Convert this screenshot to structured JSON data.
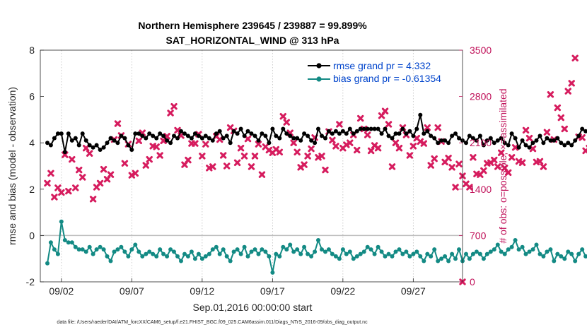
{
  "chart_data": {
    "type": "line",
    "title": "Northern Hemisphere 239645 / 239887 = 99.899%",
    "subtitle": "SAT_HORIZONTAL_WIND @ 313 hPa",
    "xlabel": "Sep.01,2016 00:00:00 start",
    "ylabel": "rmse and bias (model - observation)",
    "ylabel_right": "# of obs: o=possible; ×=assimilated",
    "footnote": "data file: /Users/raeder/DAI/ATM_forcXX/CAM6_setup/f.e21.FHIST_BGC.f09_025.CAM6assim.011/Diags_NTrS_2016-09/obs_diag_output.nc",
    "ylim": [
      -2,
      8
    ],
    "ylim_right": [
      0,
      3500
    ],
    "xlim": [
      0.5,
      30.5
    ],
    "x_ticks": [
      2,
      7,
      12,
      17,
      22,
      27
    ],
    "x_tick_labels": [
      "09/02",
      "09/07",
      "09/12",
      "09/17",
      "09/22",
      "09/27"
    ],
    "y_ticks": [
      -2,
      0,
      2,
      4,
      6,
      8
    ],
    "y_tick_labels": [
      "-2",
      "0",
      "2",
      "4",
      "6",
      "8"
    ],
    "y_ticks_right": [
      0,
      700,
      1400,
      2100,
      2800,
      3500
    ],
    "y_tick_labels_right": [
      "0",
      "700",
      "1400",
      "2100",
      "2800",
      "3500"
    ],
    "grid": "vertical",
    "legend_position": "top-right",
    "colors": {
      "rmse": "#000000",
      "bias": "#138a84",
      "obs": "#d61c5e",
      "zero_line": "#bdbdbd",
      "right_axis": "#c0125a"
    },
    "series": [
      {
        "name": "rmse grand pr = 4.332",
        "color": "#000000",
        "t0": 1.0,
        "dt": 0.25,
        "values": [
          4.0,
          3.9,
          4.2,
          4.4,
          4.4,
          3.6,
          4.4,
          4.1,
          4.2,
          3.9,
          4.4,
          4.1,
          3.9,
          3.8,
          3.9,
          3.7,
          3.8,
          4.0,
          4.2,
          4.1,
          4.0,
          4.3,
          4.2,
          3.9,
          3.7,
          4.4,
          4.4,
          4.3,
          4.2,
          4.4,
          4.3,
          4.2,
          4.4,
          4.3,
          4.1,
          4.0,
          4.3,
          4.2,
          4.5,
          4.4,
          4.3,
          4.2,
          4.4,
          4.3,
          4.2,
          4.3,
          4.2,
          4.1,
          4.4,
          4.5,
          4.2,
          4.3,
          4.0,
          4.5,
          4.4,
          4.6,
          4.3,
          4.5,
          4.4,
          4.3,
          4.1,
          4.4,
          4.3,
          4.0,
          4.6,
          4.3,
          4.2,
          4.6,
          4.4,
          4.3,
          4.2,
          4.2,
          4.1,
          4.4,
          4.3,
          4.1,
          4.0,
          4.6,
          4.3,
          4.2,
          4.5,
          4.4,
          4.5,
          4.4,
          4.5,
          4.4,
          4.6,
          4.4,
          4.5,
          4.6,
          4.6,
          4.6,
          4.6,
          4.6,
          4.6,
          4.4,
          4.6,
          4.3,
          4.2,
          4.4,
          4.4,
          4.6,
          4.4,
          4.5,
          4.3,
          4.6,
          5.2,
          4.4,
          4.5,
          4.3,
          4.2,
          4.0,
          4.1,
          4.1,
          4.0,
          4.3,
          4.4,
          4.2,
          4.1,
          4.0,
          4.3,
          4.2,
          4.1,
          4.3,
          3.9,
          4.1,
          4.2,
          4.0,
          4.1,
          4.2,
          4.0,
          3.9,
          4.4,
          4.2,
          3.8,
          4.1,
          3.9,
          3.8,
          4.0,
          4.1,
          4.3,
          4.0,
          4.2,
          4.1,
          4.1,
          4.2,
          4.0,
          3.9,
          4.0,
          3.9,
          4.1,
          4.3,
          4.6,
          4.5,
          4.4,
          4.1,
          4.2,
          5.3,
          4.4,
          4.6,
          4.1,
          4.2,
          4.8,
          4.9,
          4.6,
          5.0,
          4.4
        ]
      },
      {
        "name": "bias grand pr = -0.61354",
        "color": "#138a84",
        "t0": 1.0,
        "dt": 0.25,
        "values": [
          -1.2,
          -0.3,
          -0.6,
          -0.8,
          0.6,
          -0.2,
          -0.3,
          -0.3,
          -0.5,
          -0.6,
          -0.6,
          -0.7,
          -0.5,
          -0.8,
          -0.6,
          -0.5,
          -0.6,
          -0.9,
          -1.1,
          -0.7,
          -0.6,
          -0.5,
          -0.7,
          -0.9,
          -0.6,
          -0.4,
          -0.7,
          -0.9,
          -0.8,
          -0.7,
          -0.8,
          -0.9,
          -0.6,
          -0.8,
          -0.9,
          -0.6,
          -0.7,
          -0.9,
          -1.1,
          -0.8,
          -0.9,
          -0.7,
          -1.0,
          -0.8,
          -1.0,
          -0.9,
          -0.8,
          -0.6,
          -0.5,
          -0.8,
          -0.6,
          -0.9,
          -1.1,
          -0.7,
          -0.6,
          -0.8,
          -0.5,
          -0.9,
          -0.7,
          -0.6,
          -0.8,
          -0.6,
          -0.7,
          -0.9,
          -1.6,
          -0.8,
          -0.9,
          -0.5,
          -0.6,
          -0.4,
          -0.7,
          -0.6,
          -0.8,
          -0.5,
          -0.8,
          -0.9,
          -0.7,
          -0.2,
          -0.6,
          -0.7,
          -0.6,
          -0.8,
          -0.9,
          -1.0,
          -0.6,
          -0.8,
          -0.7,
          -1.0,
          -0.9,
          -0.8,
          -0.7,
          -0.5,
          -0.6,
          -0.8,
          -0.5,
          -0.7,
          -0.9,
          -0.8,
          -0.9,
          -0.7,
          -0.6,
          -0.8,
          -0.7,
          -0.9,
          -0.8,
          -0.7,
          -0.9,
          -1.1,
          -0.8,
          -0.9,
          -0.6,
          -1.1,
          -1.0,
          -0.9,
          -1.1,
          -0.8,
          -1.0,
          -0.6,
          -1.1,
          -0.8,
          -1.0,
          -0.8,
          -0.7,
          -0.8,
          -1.0,
          -0.8,
          -0.7,
          -0.6,
          -0.4,
          -0.7,
          -0.8,
          -0.6,
          -0.5,
          -0.2,
          -0.6,
          -0.5,
          -0.8,
          -0.7,
          -0.6,
          -0.4,
          -0.8,
          -0.9,
          -0.7,
          -0.6,
          -1.1,
          -0.8,
          -0.9,
          -1.0,
          -0.7,
          -0.8,
          -1.1,
          -0.8,
          -0.6,
          -0.9,
          -0.8,
          -1.0,
          -1.0,
          -1.3,
          -0.9,
          -0.8,
          -0.4,
          -0.8,
          -0.2,
          -0.4,
          -0.3,
          -0.1,
          -0.1,
          -0.2,
          -0.3,
          -0.1
        ]
      },
      {
        "name": "assimilated observations",
        "color": "#d61c5e",
        "t0": 1.0,
        "dt": 0.25,
        "values": [
          1490,
          1640,
          1280,
          1420,
          1350,
          1920,
          1370,
          1850,
          1420,
          1690,
          1580,
          2020,
          1940,
          1250,
          1430,
          1490,
          1700,
          1550,
          1620,
          2150,
          2390,
          2210,
          1790,
          2080,
          1610,
          1640,
          2130,
          2250,
          1760,
          1850,
          2050,
          2040,
          1910,
          2130,
          2200,
          2550,
          2650,
          2290,
          2210,
          1770,
          1840,
          2090,
          2090,
          2230,
          1900,
          2080,
          1720,
          1740,
          2200,
          2150,
          1910,
          1750,
          2330,
          2280,
          1800,
          2020,
          1900,
          2160,
          1740,
          1900,
          2080,
          1620,
          2040,
          1990,
          1950,
          2000,
          1960,
          2500,
          2410,
          2250,
          2100,
          1960,
          1730,
          1770,
          1900,
          2010,
          2180,
          1880,
          1900,
          1690,
          2270,
          2140,
          2050,
          2380,
          2020,
          2070,
          2100,
          2220,
          1990,
          2470,
          2310,
          2220,
          1980,
          2060,
          2020,
          2510,
          2580,
          2380,
          1740,
          2100,
          2020,
          2330,
          2220,
          1910,
          2050,
          2170,
          2120,
          2090,
          2330,
          1760,
          1860,
          2330,
          2120,
          1810,
          1870,
          1730,
          1430,
          1780,
          1600,
          1480,
          1430,
          1880,
          1630,
          1620,
          1680,
          1790,
          1800,
          1840,
          1740,
          1950,
          1720,
          1650,
          1880,
          2030,
          1820,
          1800,
          2290,
          2170,
          2010,
          1810,
          1820,
          1740,
          2260,
          2830,
          2150,
          2630,
          2480,
          2310,
          2880,
          3000,
          3380,
          2190,
          2180,
          1980,
          2020,
          1930,
          2120,
          1820,
          2290,
          2340,
          2410,
          2620,
          2540,
          2320,
          2150,
          2330,
          2030,
          2200,
          2030,
          2020,
          2100,
          2750,
          2700,
          1670
        ]
      }
    ]
  }
}
